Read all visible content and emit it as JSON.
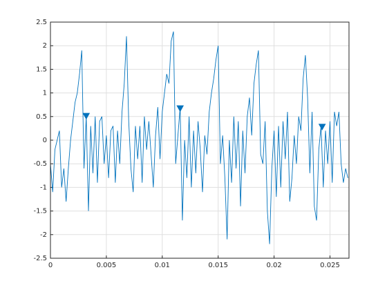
{
  "chart_data": {
    "type": "line",
    "xlim": [
      0,
      0.0267
    ],
    "ylim": [
      -2.5,
      2.5
    ],
    "xticks": [
      0,
      0.005,
      0.01,
      0.015,
      0.02,
      0.025
    ],
    "yticks": [
      -2.5,
      -2,
      -1.5,
      -1,
      -0.5,
      0,
      0.5,
      1,
      1.5,
      2,
      2.5
    ],
    "grid": true,
    "series": [
      {
        "color": "#0072bd",
        "style": "line",
        "x": [
          0,
          0.0002,
          0.0004,
          0.0006,
          0.0008,
          0.001,
          0.0012,
          0.0014,
          0.0016,
          0.0018,
          0.002,
          0.0022,
          0.0024,
          0.0026,
          0.0028,
          0.003,
          0.0032,
          0.0034,
          0.0036,
          0.0038,
          0.004,
          0.0042,
          0.0044,
          0.0046,
          0.0048,
          0.005,
          0.0052,
          0.0054,
          0.0056,
          0.0058,
          0.006,
          0.0062,
          0.0064,
          0.0066,
          0.0068,
          0.007,
          0.0072,
          0.0074,
          0.0076,
          0.0078,
          0.008,
          0.0082,
          0.0084,
          0.0086,
          0.0088,
          0.009,
          0.0092,
          0.0094,
          0.0096,
          0.0098,
          0.01,
          0.0102,
          0.0104,
          0.0106,
          0.0108,
          0.011,
          0.0112,
          0.0114,
          0.0116,
          0.0118,
          0.012,
          0.0122,
          0.0124,
          0.0126,
          0.0128,
          0.013,
          0.0132,
          0.0134,
          0.0136,
          0.0138,
          0.014,
          0.0142,
          0.0144,
          0.0146,
          0.0148,
          0.015,
          0.0152,
          0.0154,
          0.0156,
          0.0158,
          0.016,
          0.0162,
          0.0164,
          0.0166,
          0.0168,
          0.017,
          0.0172,
          0.0174,
          0.0176,
          0.0178,
          0.018,
          0.0182,
          0.0184,
          0.0186,
          0.0188,
          0.019,
          0.0192,
          0.0194,
          0.0196,
          0.0198,
          0.02,
          0.0202,
          0.0204,
          0.0206,
          0.0208,
          0.021,
          0.0212,
          0.0214,
          0.0216,
          0.0218,
          0.022,
          0.0222,
          0.0224,
          0.0226,
          0.0228,
          0.023,
          0.0232,
          0.0234,
          0.0236,
          0.0238,
          0.024,
          0.0242,
          0.0244,
          0.0246,
          0.0248,
          0.025,
          0.0252,
          0.0254,
          0.0256,
          0.0258,
          0.026,
          0.0262,
          0.0264,
          0.0266
        ],
        "values": [
          -0.5,
          -1.1,
          -0.2,
          0.0,
          0.2,
          -1.0,
          -0.6,
          -1.3,
          -0.6,
          0.0,
          0.4,
          0.8,
          1.0,
          1.4,
          1.9,
          -0.6,
          0.5,
          -1.5,
          0.3,
          -0.7,
          0.5,
          -0.9,
          0.4,
          0.5,
          -0.5,
          0.1,
          -0.8,
          0.2,
          0.3,
          -0.9,
          0.2,
          -0.5,
          0.6,
          1.2,
          2.2,
          0.4,
          -0.6,
          -1.1,
          0.3,
          -0.4,
          0.3,
          -0.9,
          0.5,
          -0.2,
          0.4,
          -0.3,
          -1.0,
          0.1,
          0.7,
          -0.4,
          0.6,
          1.0,
          1.4,
          1.2,
          2.1,
          2.3,
          -0.5,
          0.1,
          0.7,
          -1.7,
          0.0,
          -0.8,
          0.5,
          -1.0,
          0.2,
          -0.7,
          0.4,
          -0.2,
          -1.1,
          0.1,
          -0.3,
          0.6,
          1.0,
          1.3,
          1.7,
          2.0,
          -0.5,
          0.1,
          -0.8,
          -2.1,
          0.0,
          -0.9,
          0.5,
          -0.6,
          0.4,
          -1.4,
          0.2,
          -0.7,
          0.5,
          0.9,
          0.1,
          1.2,
          1.6,
          1.9,
          -0.3,
          -0.5,
          0.4,
          -1.5,
          -2.2,
          -0.6,
          0.2,
          -1.2,
          0.3,
          -1.0,
          0.4,
          -0.4,
          0.6,
          -1.3,
          -0.8,
          0.1,
          -0.5,
          0.5,
          0.2,
          1.3,
          1.8,
          0.9,
          -0.7,
          0.6,
          -1.4,
          -1.7,
          -0.2,
          0.3,
          -1.0,
          0.2,
          -0.5,
          0.4,
          -0.9,
          0.6,
          0.3,
          0.6,
          -0.5,
          -0.9,
          -0.6,
          -0.8
        ]
      },
      {
        "color": "#0072bd",
        "style": "marker",
        "marker": "triangle-down",
        "x": [
          0.0032,
          0.0116,
          0.0243
        ],
        "values": [
          0.51,
          0.67,
          0.28
        ]
      }
    ]
  }
}
